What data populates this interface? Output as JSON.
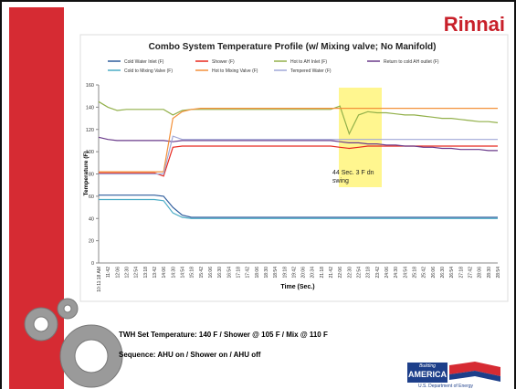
{
  "slide": {
    "logo": "Rinnai",
    "notes": [
      "TWH Set Temperature: 140 F / Shower @ 105 F / Mix @ 110 F",
      "Sequence: AHU on / Shower on / AHU off"
    ],
    "footer_logo": {
      "top": "Building",
      "main": "AMERICA",
      "bottom": "U.S. Department of Energy"
    }
  },
  "chart_data": {
    "type": "line",
    "title": "Combo System Temperature Profile (w/ Mixing valve; No Manifold)",
    "x_label": "Time (Sec.)",
    "y_label": "Temperature (F)",
    "categories": [
      "10:11:18 AM",
      "11:42",
      "12:06",
      "12:30",
      "12:54",
      "13:18",
      "13:42",
      "14:06",
      "14:30",
      "14:54",
      "15:18",
      "15:42",
      "16:06",
      "16:30",
      "16:54",
      "17:18",
      "17:42",
      "18:06",
      "18:30",
      "18:54",
      "19:18",
      "19:42",
      "20:06",
      "20:34",
      "21:18",
      "21:42",
      "22:06",
      "22:30",
      "22:54",
      "23:18",
      "23:42",
      "24:06",
      "24:30",
      "24:54",
      "25:18",
      "25:42",
      "26:06",
      "26:30",
      "26:54",
      "27:18",
      "27:42",
      "28:06",
      "28:30",
      "28:54"
    ],
    "ylim": [
      0,
      160
    ],
    "yticks": [
      0,
      20,
      40,
      60,
      80,
      100,
      120,
      140,
      160
    ],
    "grid": false,
    "series": [
      {
        "name": "Cold Water Inlet (F)",
        "color": "#2e5c9c",
        "values": [
          61,
          61,
          61,
          61,
          61,
          61,
          61,
          60,
          50,
          43,
          41,
          41,
          41,
          41,
          41,
          41,
          41,
          41,
          41,
          41,
          41,
          41,
          41,
          41,
          41,
          41,
          41,
          41,
          41,
          41,
          41,
          41,
          41,
          41,
          41,
          41,
          41,
          41,
          41,
          41,
          41,
          41,
          41,
          41
        ]
      },
      {
        "name": "Shower (F)",
        "color": "#e8281e",
        "values": [
          81,
          81,
          81,
          81,
          81,
          81,
          81,
          78,
          104,
          105,
          105,
          105,
          105,
          105,
          105,
          105,
          105,
          105,
          105,
          105,
          105,
          105,
          105,
          105,
          105,
          105,
          104,
          103,
          104,
          105,
          105,
          105,
          105,
          105,
          105,
          105,
          105,
          105,
          105,
          105,
          105,
          105,
          105,
          105
        ]
      },
      {
        "name": "Hot to AH Inlet (F)",
        "color": "#92b04a",
        "values": [
          145,
          140,
          137,
          138,
          138,
          138,
          138,
          138,
          133,
          137,
          138,
          138,
          138,
          138,
          138,
          138,
          138,
          138,
          138,
          138,
          138,
          138,
          138,
          138,
          138,
          138,
          141,
          116,
          133,
          136,
          135,
          135,
          134,
          133,
          133,
          132,
          131,
          130,
          130,
          129,
          128,
          127,
          127,
          126
        ]
      },
      {
        "name": "Return to cold AH outlet (F)",
        "color": "#6a3a8a",
        "values": [
          113,
          111,
          110,
          110,
          110,
          110,
          110,
          110,
          109,
          110,
          110,
          110,
          110,
          110,
          110,
          110,
          110,
          110,
          110,
          110,
          110,
          110,
          110,
          110,
          110,
          110,
          109,
          108,
          108,
          107,
          107,
          106,
          106,
          105,
          105,
          104,
          104,
          103,
          103,
          102,
          102,
          102,
          101,
          101
        ]
      },
      {
        "name": "Cold to Mixing Valve (F)",
        "color": "#4bacc6",
        "values": [
          57,
          57,
          57,
          57,
          57,
          57,
          57,
          56,
          45,
          41,
          40,
          40,
          40,
          40,
          40,
          40,
          40,
          40,
          40,
          40,
          40,
          40,
          40,
          40,
          40,
          40,
          40,
          40,
          40,
          40,
          40,
          40,
          40,
          40,
          40,
          40,
          40,
          40,
          40,
          40,
          40,
          40,
          40,
          40
        ]
      },
      {
        "name": "Hot to Mixing Valve (F)",
        "color": "#f3913a",
        "values": [
          82,
          82,
          82,
          82,
          82,
          82,
          82,
          82,
          130,
          136,
          138,
          139,
          139,
          139,
          139,
          139,
          139,
          139,
          139,
          139,
          139,
          139,
          139,
          139,
          139,
          139,
          139,
          139,
          139,
          139,
          139,
          139,
          139,
          139,
          139,
          139,
          139,
          139,
          139,
          139,
          139,
          139,
          139,
          139
        ]
      },
      {
        "name": "Tempered Water (F)",
        "color": "#a0a8d8",
        "values": [
          80,
          80,
          80,
          80,
          80,
          80,
          80,
          80,
          114,
          111,
          111,
          111,
          111,
          111,
          111,
          111,
          111,
          111,
          111,
          111,
          111,
          111,
          111,
          111,
          111,
          111,
          111,
          111,
          111,
          111,
          111,
          111,
          111,
          111,
          111,
          111,
          111,
          111,
          111,
          111,
          111,
          111,
          111,
          111
        ]
      }
    ],
    "annotation": {
      "text": "44 Sec. 3 F dn swing"
    }
  }
}
